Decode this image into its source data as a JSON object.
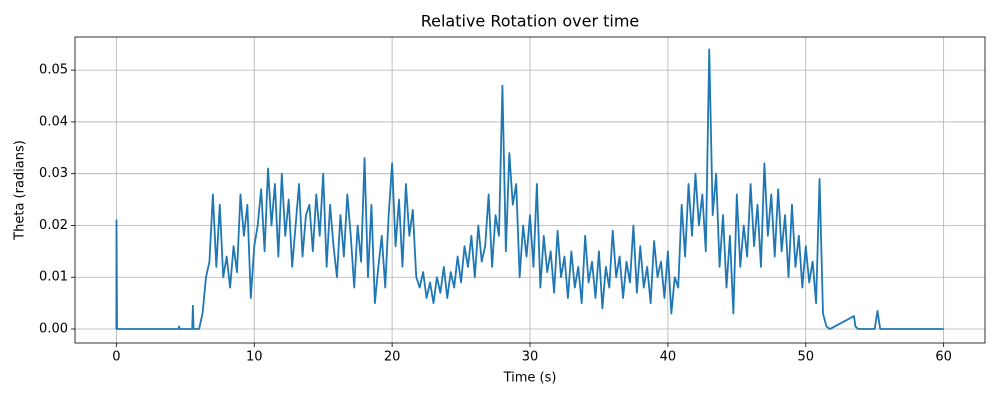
{
  "chart_data": {
    "type": "line",
    "title": "Relative Rotation over time",
    "xlabel": "Time (s)",
    "ylabel": "Theta (radians)",
    "xlim": [
      -3,
      63
    ],
    "ylim": [
      -0.0027,
      0.0564
    ],
    "xticks": [
      0,
      10,
      20,
      30,
      40,
      50,
      60
    ],
    "yticks": [
      {
        "value": 0,
        "label": "0.00"
      },
      {
        "value": 0.01,
        "label": "0.01"
      },
      {
        "value": 0.02,
        "label": "0.02"
      },
      {
        "value": 0.03,
        "label": "0.03"
      },
      {
        "value": 0.04,
        "label": "0.04"
      },
      {
        "value": 0.05,
        "label": "0.05"
      }
    ],
    "grid": true,
    "x": [
      0,
      0.01,
      0.05,
      4.5,
      4.55,
      4.6,
      5.5,
      5.55,
      5.6,
      6,
      6.25,
      6.5,
      6.75,
      7,
      7.25,
      7.5,
      7.75,
      8,
      8.25,
      8.5,
      8.75,
      9,
      9.25,
      9.5,
      9.75,
      10,
      10.25,
      10.5,
      10.75,
      11,
      11.25,
      11.5,
      11.75,
      12,
      12.25,
      12.5,
      12.75,
      13,
      13.25,
      13.5,
      13.75,
      14,
      14.25,
      14.5,
      14.75,
      15,
      15.25,
      15.5,
      15.75,
      16,
      16.25,
      16.5,
      16.75,
      17,
      17.25,
      17.5,
      17.75,
      18,
      18.25,
      18.5,
      18.75,
      19,
      19.25,
      19.5,
      19.75,
      20,
      20.25,
      20.5,
      20.75,
      21,
      21.25,
      21.5,
      21.75,
      22,
      22.25,
      22.5,
      22.75,
      23,
      23.25,
      23.5,
      23.75,
      24,
      24.25,
      24.5,
      24.75,
      25,
      25.25,
      25.5,
      25.75,
      26,
      26.25,
      26.5,
      26.75,
      27,
      27.25,
      27.5,
      27.75,
      28,
      28.25,
      28.5,
      28.75,
      29,
      29.25,
      29.5,
      29.75,
      30,
      30.25,
      30.5,
      30.75,
      31,
      31.25,
      31.5,
      31.75,
      32,
      32.25,
      32.5,
      32.75,
      33,
      33.25,
      33.5,
      33.75,
      34,
      34.25,
      34.5,
      34.75,
      35,
      35.25,
      35.5,
      35.75,
      36,
      36.25,
      36.5,
      36.75,
      37,
      37.25,
      37.5,
      37.75,
      38,
      38.25,
      38.5,
      38.75,
      39,
      39.25,
      39.5,
      39.75,
      40,
      40.25,
      40.5,
      40.75,
      41,
      41.25,
      41.5,
      41.75,
      42,
      42.25,
      42.5,
      42.75,
      43,
      43.25,
      43.5,
      43.75,
      44,
      44.25,
      44.5,
      44.75,
      45,
      45.25,
      45.5,
      45.75,
      46,
      46.25,
      46.5,
      46.75,
      47,
      47.25,
      47.5,
      47.75,
      48,
      48.25,
      48.5,
      48.75,
      49,
      49.25,
      49.5,
      49.75,
      50,
      50.25,
      50.5,
      50.75,
      51,
      51.25,
      51.5,
      51.75,
      53.5,
      53.6,
      53.8,
      55,
      55.2,
      55.4,
      60
    ],
    "series": [
      {
        "color": "#1f77b4",
        "values": [
          0,
          0.021,
          0,
          0,
          0.0005,
          0,
          0,
          0.0045,
          0,
          0.0,
          0.003,
          0.01,
          0.013,
          0.026,
          0.012,
          0.024,
          0.01,
          0.014,
          0.008,
          0.016,
          0.011,
          0.026,
          0.018,
          0.024,
          0.006,
          0.016,
          0.02,
          0.027,
          0.015,
          0.031,
          0.02,
          0.028,
          0.014,
          0.03,
          0.018,
          0.025,
          0.012,
          0.02,
          0.028,
          0.014,
          0.022,
          0.024,
          0.015,
          0.026,
          0.018,
          0.03,
          0.012,
          0.024,
          0.016,
          0.01,
          0.022,
          0.014,
          0.026,
          0.018,
          0.008,
          0.02,
          0.013,
          0.033,
          0.01,
          0.024,
          0.005,
          0.012,
          0.018,
          0.008,
          0.022,
          0.032,
          0.016,
          0.025,
          0.012,
          0.028,
          0.018,
          0.023,
          0.01,
          0.008,
          0.011,
          0.006,
          0.009,
          0.005,
          0.01,
          0.007,
          0.012,
          0.006,
          0.011,
          0.008,
          0.014,
          0.009,
          0.016,
          0.012,
          0.018,
          0.01,
          0.02,
          0.013,
          0.016,
          0.026,
          0.012,
          0.022,
          0.018,
          0.047,
          0.015,
          0.034,
          0.024,
          0.028,
          0.01,
          0.02,
          0.014,
          0.022,
          0.012,
          0.028,
          0.008,
          0.018,
          0.011,
          0.015,
          0.007,
          0.019,
          0.01,
          0.014,
          0.006,
          0.015,
          0.008,
          0.012,
          0.005,
          0.018,
          0.009,
          0.013,
          0.006,
          0.015,
          0.004,
          0.012,
          0.008,
          0.019,
          0.01,
          0.014,
          0.006,
          0.013,
          0.009,
          0.02,
          0.007,
          0.016,
          0.008,
          0.012,
          0.005,
          0.017,
          0.01,
          0.013,
          0.006,
          0.015,
          0.003,
          0.01,
          0.008,
          0.024,
          0.014,
          0.028,
          0.018,
          0.03,
          0.02,
          0.026,
          0.015,
          0.054,
          0.022,
          0.03,
          0.012,
          0.022,
          0.008,
          0.018,
          0.003,
          0.026,
          0.012,
          0.02,
          0.014,
          0.028,
          0.016,
          0.024,
          0.012,
          0.032,
          0.018,
          0.026,
          0.014,
          0.027,
          0.015,
          0.022,
          0.01,
          0.024,
          0.012,
          0.018,
          0.008,
          0.016,
          0.009,
          0.013,
          0.005,
          0.029,
          0.003,
          0.0005,
          0,
          0.0025,
          0.0005,
          0,
          0,
          0.0035,
          0,
          0
        ]
      }
    ]
  }
}
